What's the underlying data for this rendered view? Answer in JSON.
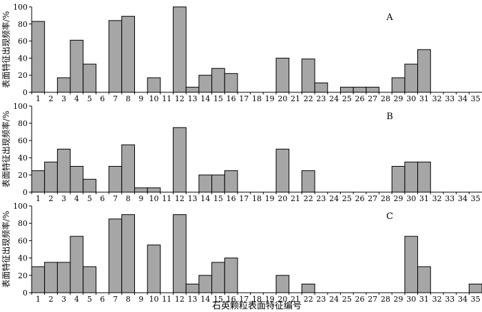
{
  "chart_data": {
    "type": "bar",
    "layout": "three stacked panels sharing the x axis",
    "xlabel": "石英颗粒表面特征编号",
    "categories": [
      "1",
      "2",
      "3",
      "4",
      "5",
      "6",
      "7",
      "8",
      "9",
      "10",
      "11",
      "12",
      "13",
      "14",
      "15",
      "16",
      "17",
      "18",
      "19",
      "20",
      "21",
      "22",
      "23",
      "24",
      "25",
      "26",
      "27",
      "28",
      "29",
      "30",
      "31",
      "32",
      "33",
      "34",
      "35"
    ],
    "ylim": [
      0,
      100
    ],
    "yticks": [
      0,
      20,
      40,
      60,
      80,
      100
    ],
    "bar_color": "#a6a6a6",
    "panels": [
      {
        "label": "A",
        "ylabel": "表面特征出现频率/%",
        "values": [
          83,
          0,
          17,
          61,
          33,
          0,
          84,
          89,
          0,
          17,
          0,
          100,
          6,
          20,
          28,
          22,
          0,
          0,
          0,
          40,
          0,
          39,
          11,
          0,
          6,
          6,
          6,
          0,
          17,
          33,
          50,
          0,
          0,
          0,
          0
        ]
      },
      {
        "label": "B",
        "ylabel": "表面特征出现频率/%",
        "values": [
          25,
          35,
          50,
          30,
          15,
          0,
          30,
          55,
          5,
          5,
          0,
          75,
          0,
          20,
          20,
          25,
          0,
          0,
          0,
          50,
          0,
          25,
          0,
          0,
          0,
          0,
          0,
          0,
          30,
          35,
          35,
          0,
          0,
          0,
          0
        ]
      },
      {
        "label": "C",
        "ylabel": "表面特征出现频率/%",
        "values": [
          30,
          35,
          35,
          65,
          30,
          0,
          85,
          90,
          0,
          55,
          0,
          90,
          10,
          20,
          35,
          40,
          0,
          0,
          0,
          20,
          0,
          10,
          0,
          0,
          0,
          0,
          0,
          0,
          0,
          65,
          30,
          0,
          0,
          0,
          10
        ]
      }
    ]
  }
}
